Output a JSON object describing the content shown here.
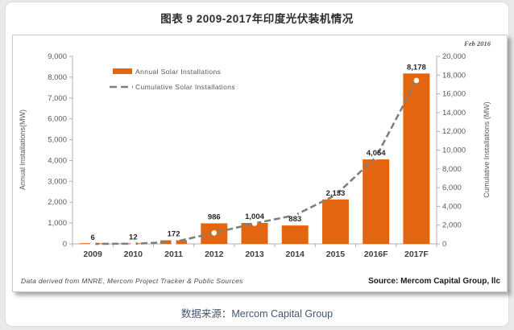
{
  "page": {
    "title": "图表 9  2009-2017年印度光伏装机情况",
    "date_note": "Feb 2016",
    "footnote_left": "Data derived from MNRE, Mercom Project Tracker & Public  Sources",
    "footnote_right": "Source: Mercom Capital Group, llc",
    "caption": "数据来源：Mercom Capital Group"
  },
  "colors": {
    "bar_orange": "#E4650F",
    "line_gray": "#7F7F7F",
    "axis_gray": "#B0B0B0",
    "text_gray": "#595959",
    "caption_blue": "#44566B",
    "panel_bg": "#FFFFFF",
    "page_bg": "#E9E9E9"
  },
  "chart_data": {
    "type": "bar+line",
    "categories": [
      "2009",
      "2010",
      "2011",
      "2012",
      "2013",
      "2014",
      "2015",
      "2016F",
      "2017F"
    ],
    "series": [
      {
        "name": "Annual Solar Installations",
        "type": "bar",
        "axis": "left",
        "color": "#E4650F",
        "values": [
          6,
          12,
          172,
          986,
          1004,
          883,
          2133,
          4054,
          8178
        ],
        "data_labels": [
          "6",
          "12",
          "172",
          "986",
          "1,004",
          "883",
          "2,133",
          "4,054",
          "8,178"
        ]
      },
      {
        "name": "Cumulative Solar Installations",
        "type": "line",
        "axis": "right",
        "color": "#7F7F7F",
        "dashed": true,
        "marker": "white-circle",
        "values": [
          6,
          18,
          190,
          1176,
          2180,
          3063,
          5196,
          9250,
          17428
        ]
      }
    ],
    "left_axis": {
      "label": "Annual Installations(MW)",
      "min": 0,
      "max": 9000,
      "step": 1000
    },
    "right_axis": {
      "label": "Cumulative Installations (MW)",
      "min": 0,
      "max": 20000,
      "step": 2000
    },
    "grid": false,
    "legend_position": "inside-top-left"
  }
}
